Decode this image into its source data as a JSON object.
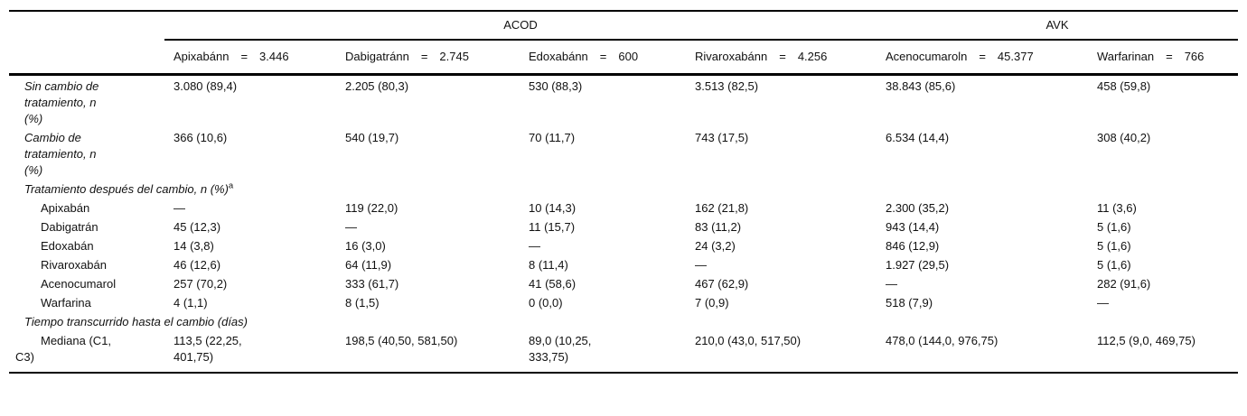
{
  "table": {
    "groups": [
      {
        "label": "ACOD"
      },
      {
        "label": "AVK"
      }
    ],
    "columns": [
      {
        "name": "Apixabánn",
        "eq": "=",
        "n": "3.446"
      },
      {
        "name": "Dabigatránn",
        "eq": "=",
        "n": "2.745"
      },
      {
        "name": "Edoxabánn",
        "eq": "=",
        "n": "600"
      },
      {
        "name": "Rivaroxabánn",
        "eq": "=",
        "n": "4.256"
      },
      {
        "name": "Acenocumaroln",
        "eq": "=",
        "n": "45.377"
      },
      {
        "name": "Warfarinan",
        "eq": "=",
        "n": "766"
      }
    ],
    "rows": [
      {
        "label_lines": [
          "Sin cambio de",
          "tratamiento, n",
          "(%)"
        ],
        "cells": [
          "3.080 (89,4)",
          "2.205 (80,3)",
          "530 (88,3)",
          "3.513 (82,5)",
          "38.843 (85,6)",
          "458 (59,8)"
        ]
      },
      {
        "label_lines": [
          "Cambio de",
          "tratamiento, n",
          "(%)"
        ],
        "cells": [
          "366 (10,6)",
          "540 (19,7)",
          "70 (11,7)",
          "743 (17,5)",
          "6.534 (14,4)",
          "308 (40,2)"
        ]
      },
      {
        "section": "Tratamiento después del cambio, n (%)",
        "sup": "a"
      },
      {
        "label": "Apixabán",
        "cells": [
          "—",
          "119 (22,0)",
          "10 (14,3)",
          "162 (21,8)",
          "2.300 (35,2)",
          "11 (3,6)"
        ]
      },
      {
        "label": "Dabigatrán",
        "cells": [
          "45 (12,3)",
          "—",
          "11 (15,7)",
          "83 (11,2)",
          "943 (14,4)",
          "5 (1,6)"
        ]
      },
      {
        "label": "Edoxabán",
        "cells": [
          "14 (3,8)",
          "16 (3,0)",
          "—",
          "24 (3,2)",
          "846 (12,9)",
          "5 (1,6)"
        ]
      },
      {
        "label": "Rivaroxabán",
        "cells": [
          "46 (12,6)",
          "64 (11,9)",
          "8 (11,4)",
          "—",
          "1.927 (29,5)",
          "5 (1,6)"
        ]
      },
      {
        "label": "Acenocumarol",
        "cells": [
          "257 (70,2)",
          "333 (61,7)",
          "41 (58,6)",
          "467 (62,9)",
          "—",
          "282 (91,6)"
        ]
      },
      {
        "label": "Warfarina",
        "cells": [
          "4 (1,1)",
          "8 (1,5)",
          "0 (0,0)",
          "7 (0,9)",
          "518 (7,9)",
          "—"
        ]
      },
      {
        "section": "Tiempo transcurrido hasta el cambio (días)"
      },
      {
        "label_lines": [
          "Mediana (C1,",
          "C3)"
        ],
        "cells": [
          [
            "113,5 (22,25,",
            "401,75)"
          ],
          "198,5 (40,50, 581,50)",
          [
            "89,0 (10,25,",
            "333,75)"
          ],
          "210,0 (43,0, 517,50)",
          "478,0 (144,0, 976,75)",
          "112,5 (9,0, 469,75)"
        ]
      }
    ]
  }
}
